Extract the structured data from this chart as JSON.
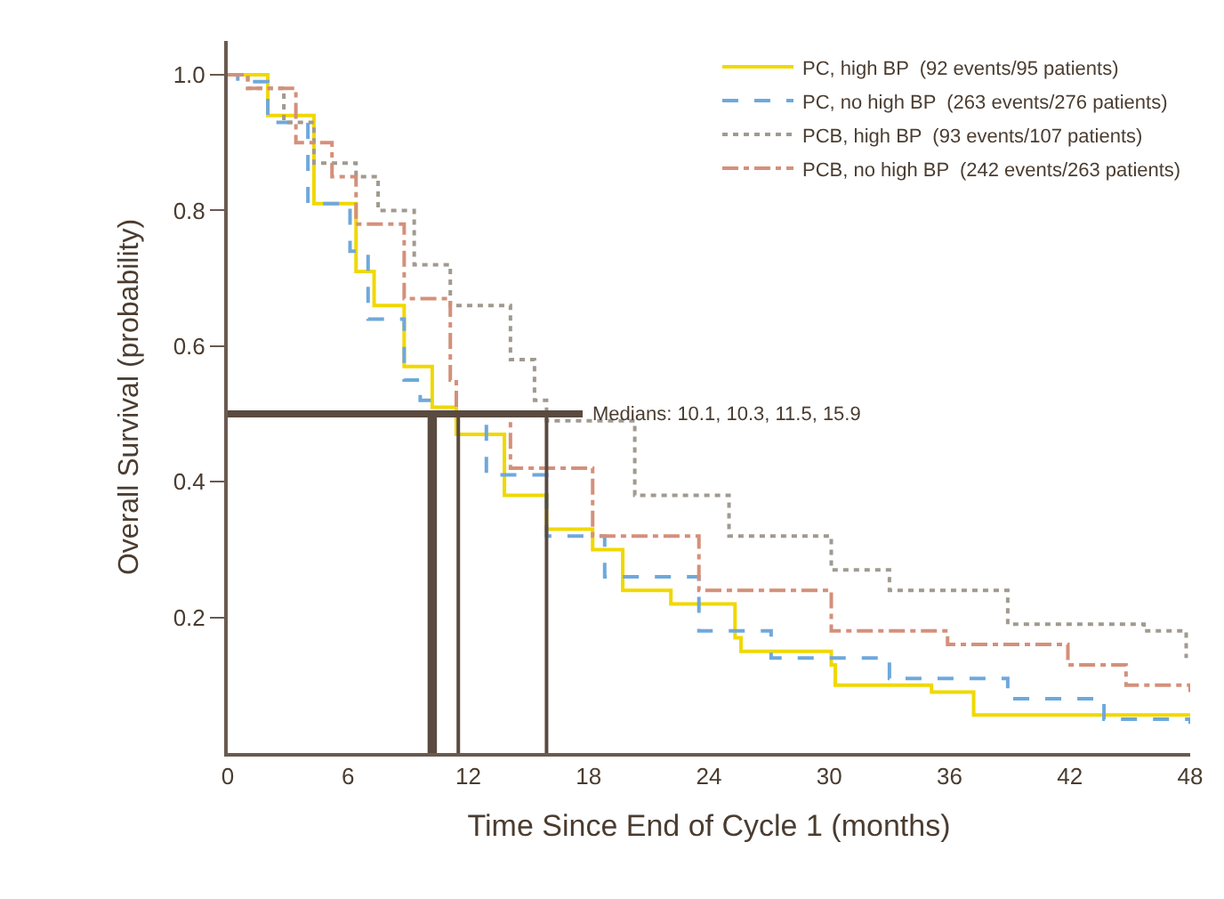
{
  "chart_data": {
    "type": "step",
    "xlabel": "Time Since End of Cycle 1 (months)",
    "ylabel": "Overall Survival (probability)",
    "xlim": [
      0,
      48
    ],
    "xticks": [
      0,
      6,
      12,
      18,
      24,
      30,
      36,
      42,
      48
    ],
    "ylim": [
      0,
      1.05
    ],
    "yticks": [
      0.2,
      0.4,
      0.6,
      0.8,
      {
        "value": 1.0,
        "label": "1.0"
      }
    ],
    "legend": "top right",
    "marker": "none",
    "series": [
      {
        "name": "PC, high BP  (92 events/95 patients)",
        "color": "#f0d800",
        "line_style": "solid",
        "x": [
          0,
          0.2,
          2.0,
          4.3,
          6.4,
          7.3,
          8.8,
          10.2,
          11.4,
          13.8,
          15.9,
          18.2,
          19.7,
          22.1,
          25.3,
          25.6,
          30.1,
          30.3,
          35.1,
          37.2,
          48
        ],
        "values": [
          1.0,
          1.0,
          0.94,
          0.81,
          0.71,
          0.66,
          0.57,
          0.51,
          0.47,
          0.38,
          0.33,
          0.3,
          0.24,
          0.22,
          0.17,
          0.15,
          0.13,
          0.1,
          0.09,
          0.056,
          0.056
        ]
      },
      {
        "name": "PC, no high BP  (263 events/276 patients)",
        "color": "#6fa8dc",
        "line_style": "dashed",
        "x": [
          0,
          0.5,
          2.0,
          4.0,
          6.1,
          7.0,
          8.8,
          9.6,
          10.2,
          12.9,
          15.9,
          18.8,
          23.5,
          27.1,
          33.0,
          38.9,
          43.7,
          48
        ],
        "values": [
          1.0,
          0.99,
          0.93,
          0.81,
          0.74,
          0.64,
          0.55,
          0.52,
          0.5,
          0.41,
          0.32,
          0.26,
          0.18,
          0.14,
          0.11,
          0.08,
          0.05,
          0.043
        ]
      },
      {
        "name": "PCB, high BP  (93 events/107 patients)",
        "color": "#a09a90",
        "line_style": "dotted",
        "x": [
          0,
          1.0,
          2.8,
          4.3,
          6.4,
          7.5,
          9.3,
          11.1,
          14.1,
          15.3,
          15.9,
          20.3,
          25.0,
          30.1,
          33.0,
          38.9,
          45.7,
          47.8
        ],
        "values": [
          1.0,
          0.98,
          0.93,
          0.87,
          0.85,
          0.8,
          0.72,
          0.66,
          0.58,
          0.52,
          0.49,
          0.38,
          0.32,
          0.27,
          0.24,
          0.19,
          0.18,
          0.14
        ]
      },
      {
        "name": "PCB, no high BP  (242 events/263 patients)",
        "color": "#d4907a",
        "line_style": "dashdot",
        "x": [
          0,
          1.0,
          3.4,
          5.2,
          6.4,
          8.8,
          11.1,
          11.4,
          14.1,
          18.2,
          23.5,
          30.1,
          35.9,
          41.9,
          44.8,
          48
        ],
        "values": [
          1.0,
          0.98,
          0.9,
          0.85,
          0.78,
          0.67,
          0.55,
          0.5,
          0.42,
          0.32,
          0.24,
          0.18,
          0.16,
          0.13,
          0.1,
          0.09
        ]
      }
    ],
    "annotations": [
      {
        "text": "Medians: 10.1, 10.3, 11.5, 15.9",
        "x": 17.7,
        "y": 0.5
      }
    ],
    "ref_lines": [
      {
        "axis": "y",
        "value": 0.5,
        "color": "#5a4a40"
      },
      {
        "axis": "x",
        "value": 10.1,
        "color": "#5a4a40"
      },
      {
        "axis": "x",
        "value": 10.3,
        "color": "#5a4a40"
      },
      {
        "axis": "x",
        "value": 11.5,
        "color": "#5a4a40"
      },
      {
        "axis": "x",
        "value": 15.9,
        "color": "#5a4a40"
      }
    ]
  }
}
